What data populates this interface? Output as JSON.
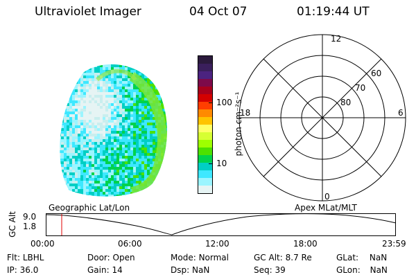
{
  "header": {
    "title": "Ultraviolet Imager",
    "date": "04 Oct 07",
    "time": "01:19:44 UT"
  },
  "colorbar": {
    "unit_label": "photon cm⁻²s⁻¹",
    "ticks": [
      {
        "label": "100",
        "value": 100
      },
      {
        "label": "10",
        "value": 10
      }
    ],
    "colors": [
      "#2b1a3c",
      "#3a1f5c",
      "#4b2380",
      "#7d0a4a",
      "#a8001c",
      "#d40000",
      "#ff3e00",
      "#ff8a00",
      "#ffc400",
      "#ffff66",
      "#d7ff33",
      "#9eff00",
      "#4ce100",
      "#00d34c",
      "#00cfc4",
      "#3ee8ff",
      "#9bf5ff",
      "#e6f4f4"
    ]
  },
  "polar_grid": {
    "mlt_labels": [
      {
        "label": "12",
        "pos": "top"
      },
      {
        "label": "18",
        "pos": "left"
      },
      {
        "label": "6",
        "pos": "right"
      },
      {
        "label": "0",
        "pos": "bottom"
      }
    ],
    "lat_labels": [
      "60",
      "70",
      "80"
    ]
  },
  "timeline": {
    "y_axis_label": "GC Alt",
    "y_ticks": [
      "9.0",
      "1.8"
    ],
    "left_title": "Geographic Lat/Lon",
    "right_title": "Apex MLat/MLT",
    "time_ticks": [
      "00:00",
      "06:00",
      "12:00",
      "18:00",
      "23:59"
    ],
    "cursor_time": "01:19:44"
  },
  "info": {
    "filter": {
      "label": "Flt:",
      "value": "LBHL"
    },
    "ip": {
      "label": "IP:",
      "value": "36.0"
    },
    "door": {
      "label": "Door:",
      "value": "Open"
    },
    "gain": {
      "label": "Gain:",
      "value": "14"
    },
    "mode": {
      "label": "Mode:",
      "value": "Normal"
    },
    "dsp": {
      "label": "Dsp:",
      "value": "NaN"
    },
    "gc_alt": {
      "label": "GC Alt:",
      "value": "8.7 Re"
    },
    "seq": {
      "label": "Seq:",
      "value": "39"
    },
    "glat": {
      "label": "GLat:",
      "value": "NaN"
    },
    "glon": {
      "label": "GLon:",
      "value": "NaN"
    }
  }
}
